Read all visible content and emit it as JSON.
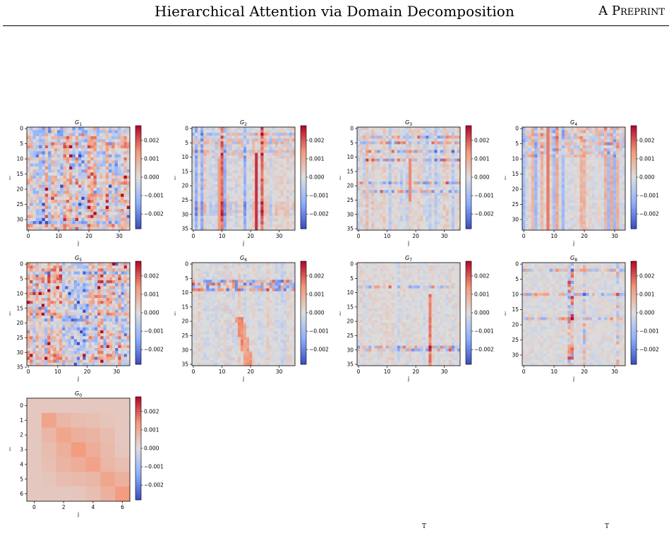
{
  "header": {
    "title": "Hierarchical Attention via Domain Decomposition",
    "tag": "A Preprint"
  },
  "footer_marks": [
    "T",
    "T"
  ],
  "colors": {
    "colormap": "coolwarm",
    "cold": "#3b4cc0",
    "neutral": "#dddddd",
    "warm": "#b40426"
  },
  "chart_data": [
    {
      "type": "heatmap",
      "title": "G",
      "title_subscript": "1",
      "xlabel": "j",
      "ylabel": "i",
      "size": 34,
      "xticks": [
        0,
        10,
        20,
        30
      ],
      "yticks": [
        0,
        5,
        10,
        15,
        20,
        25,
        30
      ],
      "colorbar_ticks": [
        "0.002",
        "0.001",
        "0.000",
        "−0.001",
        "−0.002"
      ],
      "vlim": [
        -0.0028,
        0.0028
      ],
      "pattern": "dense-mixed"
    },
    {
      "type": "heatmap",
      "title": "G",
      "title_subscript": "2",
      "xlabel": "j",
      "ylabel": "i",
      "size": 36,
      "xticks": [
        0,
        10,
        20,
        30
      ],
      "yticks": [
        0,
        5,
        10,
        15,
        20,
        25,
        30,
        35
      ],
      "colorbar_ticks": [
        "0.002",
        "0.001",
        "0.000",
        "−0.001",
        "−0.002"
      ],
      "vlim": [
        -0.0028,
        0.0028
      ],
      "pattern": "warm-columns"
    },
    {
      "type": "heatmap",
      "title": "G",
      "title_subscript": "3",
      "xlabel": "j",
      "ylabel": "i",
      "size": 36,
      "xticks": [
        0,
        10,
        20,
        30
      ],
      "yticks": [
        0,
        5,
        10,
        15,
        20,
        25,
        30,
        35
      ],
      "colorbar_ticks": [
        "0.002",
        "0.001",
        "0.000",
        "−0.001",
        "−0.002"
      ],
      "vlim": [
        -0.0028,
        0.0028
      ],
      "pattern": "top-rows"
    },
    {
      "type": "heatmap",
      "title": "G",
      "title_subscript": "4",
      "xlabel": "j",
      "ylabel": "i",
      "size": 34,
      "xticks": [
        0,
        10,
        20,
        30
      ],
      "yticks": [
        0,
        5,
        10,
        15,
        20,
        25,
        30
      ],
      "colorbar_ticks": [
        "0.002",
        "0.001",
        "0.000",
        "−0.001",
        "−0.002"
      ],
      "vlim": [
        -0.0028,
        0.0028
      ],
      "pattern": "warm-columns-soft"
    },
    {
      "type": "heatmap",
      "title": "G",
      "title_subscript": "5",
      "xlabel": "j",
      "ylabel": "i",
      "size": 35,
      "xticks": [
        0,
        10,
        20,
        30
      ],
      "yticks": [
        0,
        5,
        10,
        15,
        20,
        25,
        30,
        35
      ],
      "colorbar_ticks": [
        "0.002",
        "0.001",
        "0.000",
        "−0.001",
        "−0.002"
      ],
      "vlim": [
        -0.0028,
        0.0028
      ],
      "pattern": "dense-mixed"
    },
    {
      "type": "heatmap",
      "title": "G",
      "title_subscript": "6",
      "xlabel": "j",
      "ylabel": "i",
      "size": 36,
      "xticks": [
        0,
        10,
        20,
        30
      ],
      "yticks": [
        0,
        5,
        10,
        15,
        20,
        25,
        30,
        35
      ],
      "colorbar_ticks": [
        "0.002",
        "0.001",
        "0.000",
        "−0.001",
        "−0.002"
      ],
      "vlim": [
        -0.0028,
        0.0028
      ],
      "pattern": "band-rows"
    },
    {
      "type": "heatmap",
      "title": "G",
      "title_subscript": "7",
      "xlabel": "j",
      "ylabel": "i",
      "size": 36,
      "xticks": [
        0,
        10,
        20,
        30
      ],
      "yticks": [
        0,
        5,
        10,
        15,
        20,
        25,
        30,
        35
      ],
      "colorbar_ticks": [
        "0.002",
        "0.001",
        "0.000",
        "−0.001",
        "−0.002"
      ],
      "vlim": [
        -0.0028,
        0.0028
      ],
      "pattern": "sparse-lines"
    },
    {
      "type": "heatmap",
      "title": "G",
      "title_subscript": "8",
      "xlabel": "j",
      "ylabel": "i",
      "size": 34,
      "xticks": [
        0,
        10,
        20,
        30
      ],
      "yticks": [
        0,
        5,
        10,
        15,
        20,
        25,
        30
      ],
      "colorbar_ticks": [
        "0.002",
        "0.001",
        "0.000",
        "−0.001",
        "−0.002"
      ],
      "vlim": [
        -0.0028,
        0.0028
      ],
      "pattern": "cross-lines"
    },
    {
      "type": "heatmap",
      "title": "G",
      "title_subscript": "0",
      "xlabel": "j",
      "ylabel": "i",
      "size": 7,
      "xticks": [
        0,
        2,
        4,
        6
      ],
      "yticks": [
        0,
        1,
        2,
        3,
        4,
        5,
        6
      ],
      "colorbar_ticks": [
        "0.002",
        "0.001",
        "0.000",
        "−0.001",
        "−0.002"
      ],
      "vlim": [
        -0.0028,
        0.0028
      ],
      "pattern": "diagonal-block"
    }
  ]
}
